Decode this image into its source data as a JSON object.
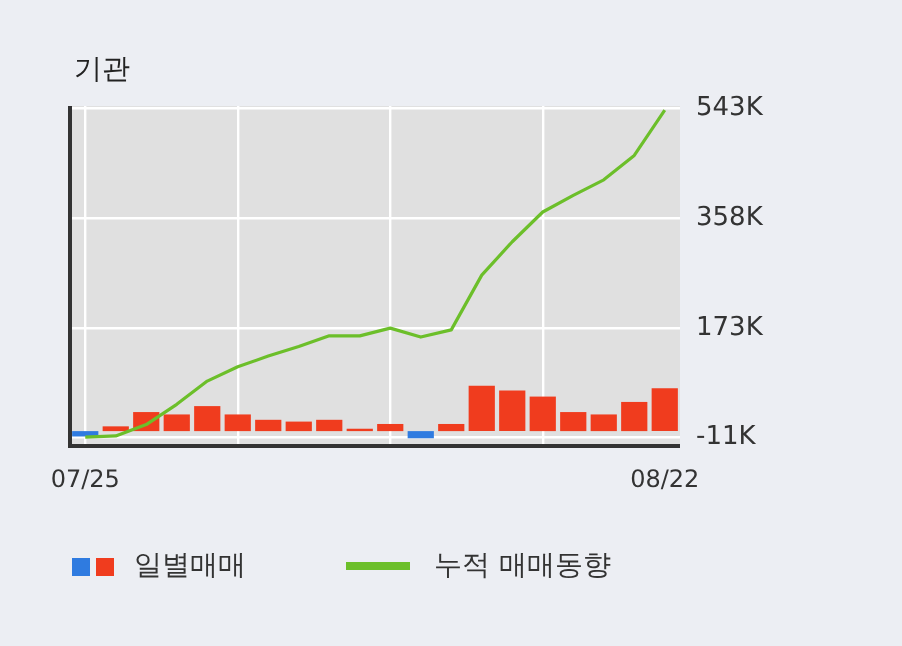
{
  "chart_data": {
    "type": "bar",
    "title": "기관",
    "categories": [
      "07/25",
      null,
      null,
      null,
      null,
      null,
      null,
      null,
      null,
      null,
      null,
      null,
      null,
      null,
      null,
      null,
      null,
      null,
      null,
      "08/22"
    ],
    "series": [
      {
        "name": "일별매매",
        "color": "#f03c1e",
        "colors": [
          "#2f7be0",
          "#f03c1e",
          "#f03c1e",
          "#f03c1e",
          "#f03c1e",
          "#f03c1e",
          "#f03c1e",
          "#f03c1e",
          "#f03c1e",
          "#f03c1e",
          "#f03c1e",
          "#2f7be0",
          "#f03c1e",
          "#f03c1e",
          "#f03c1e",
          "#f03c1e",
          "#f03c1e",
          "#f03c1e",
          "#f03c1e",
          "#f03c1e"
        ],
        "values": [
          -9,
          8,
          32,
          28,
          42,
          28,
          19,
          16,
          19,
          4,
          12,
          -12,
          12,
          76,
          68,
          58,
          32,
          28,
          49,
          72
        ]
      },
      {
        "name": "누적 매매동향",
        "type": "line",
        "color": "#6cbf2a",
        "values": [
          -10,
          -8,
          11,
          45,
          84,
          108,
          126,
          142,
          160,
          160,
          173,
          158,
          170,
          262,
          318,
          368,
          396,
          422,
          463,
          539
        ]
      }
    ],
    "ylim": [
      -25,
      546
    ],
    "yticks": [
      {
        "value": -11,
        "label": "-11K"
      },
      {
        "value": 173,
        "label": "173K"
      },
      {
        "value": 358,
        "label": "358K"
      },
      {
        "value": 543,
        "label": "543K"
      }
    ],
    "grid": true,
    "legend": "bottom left",
    "marker": "none",
    "line_style": "solid"
  }
}
